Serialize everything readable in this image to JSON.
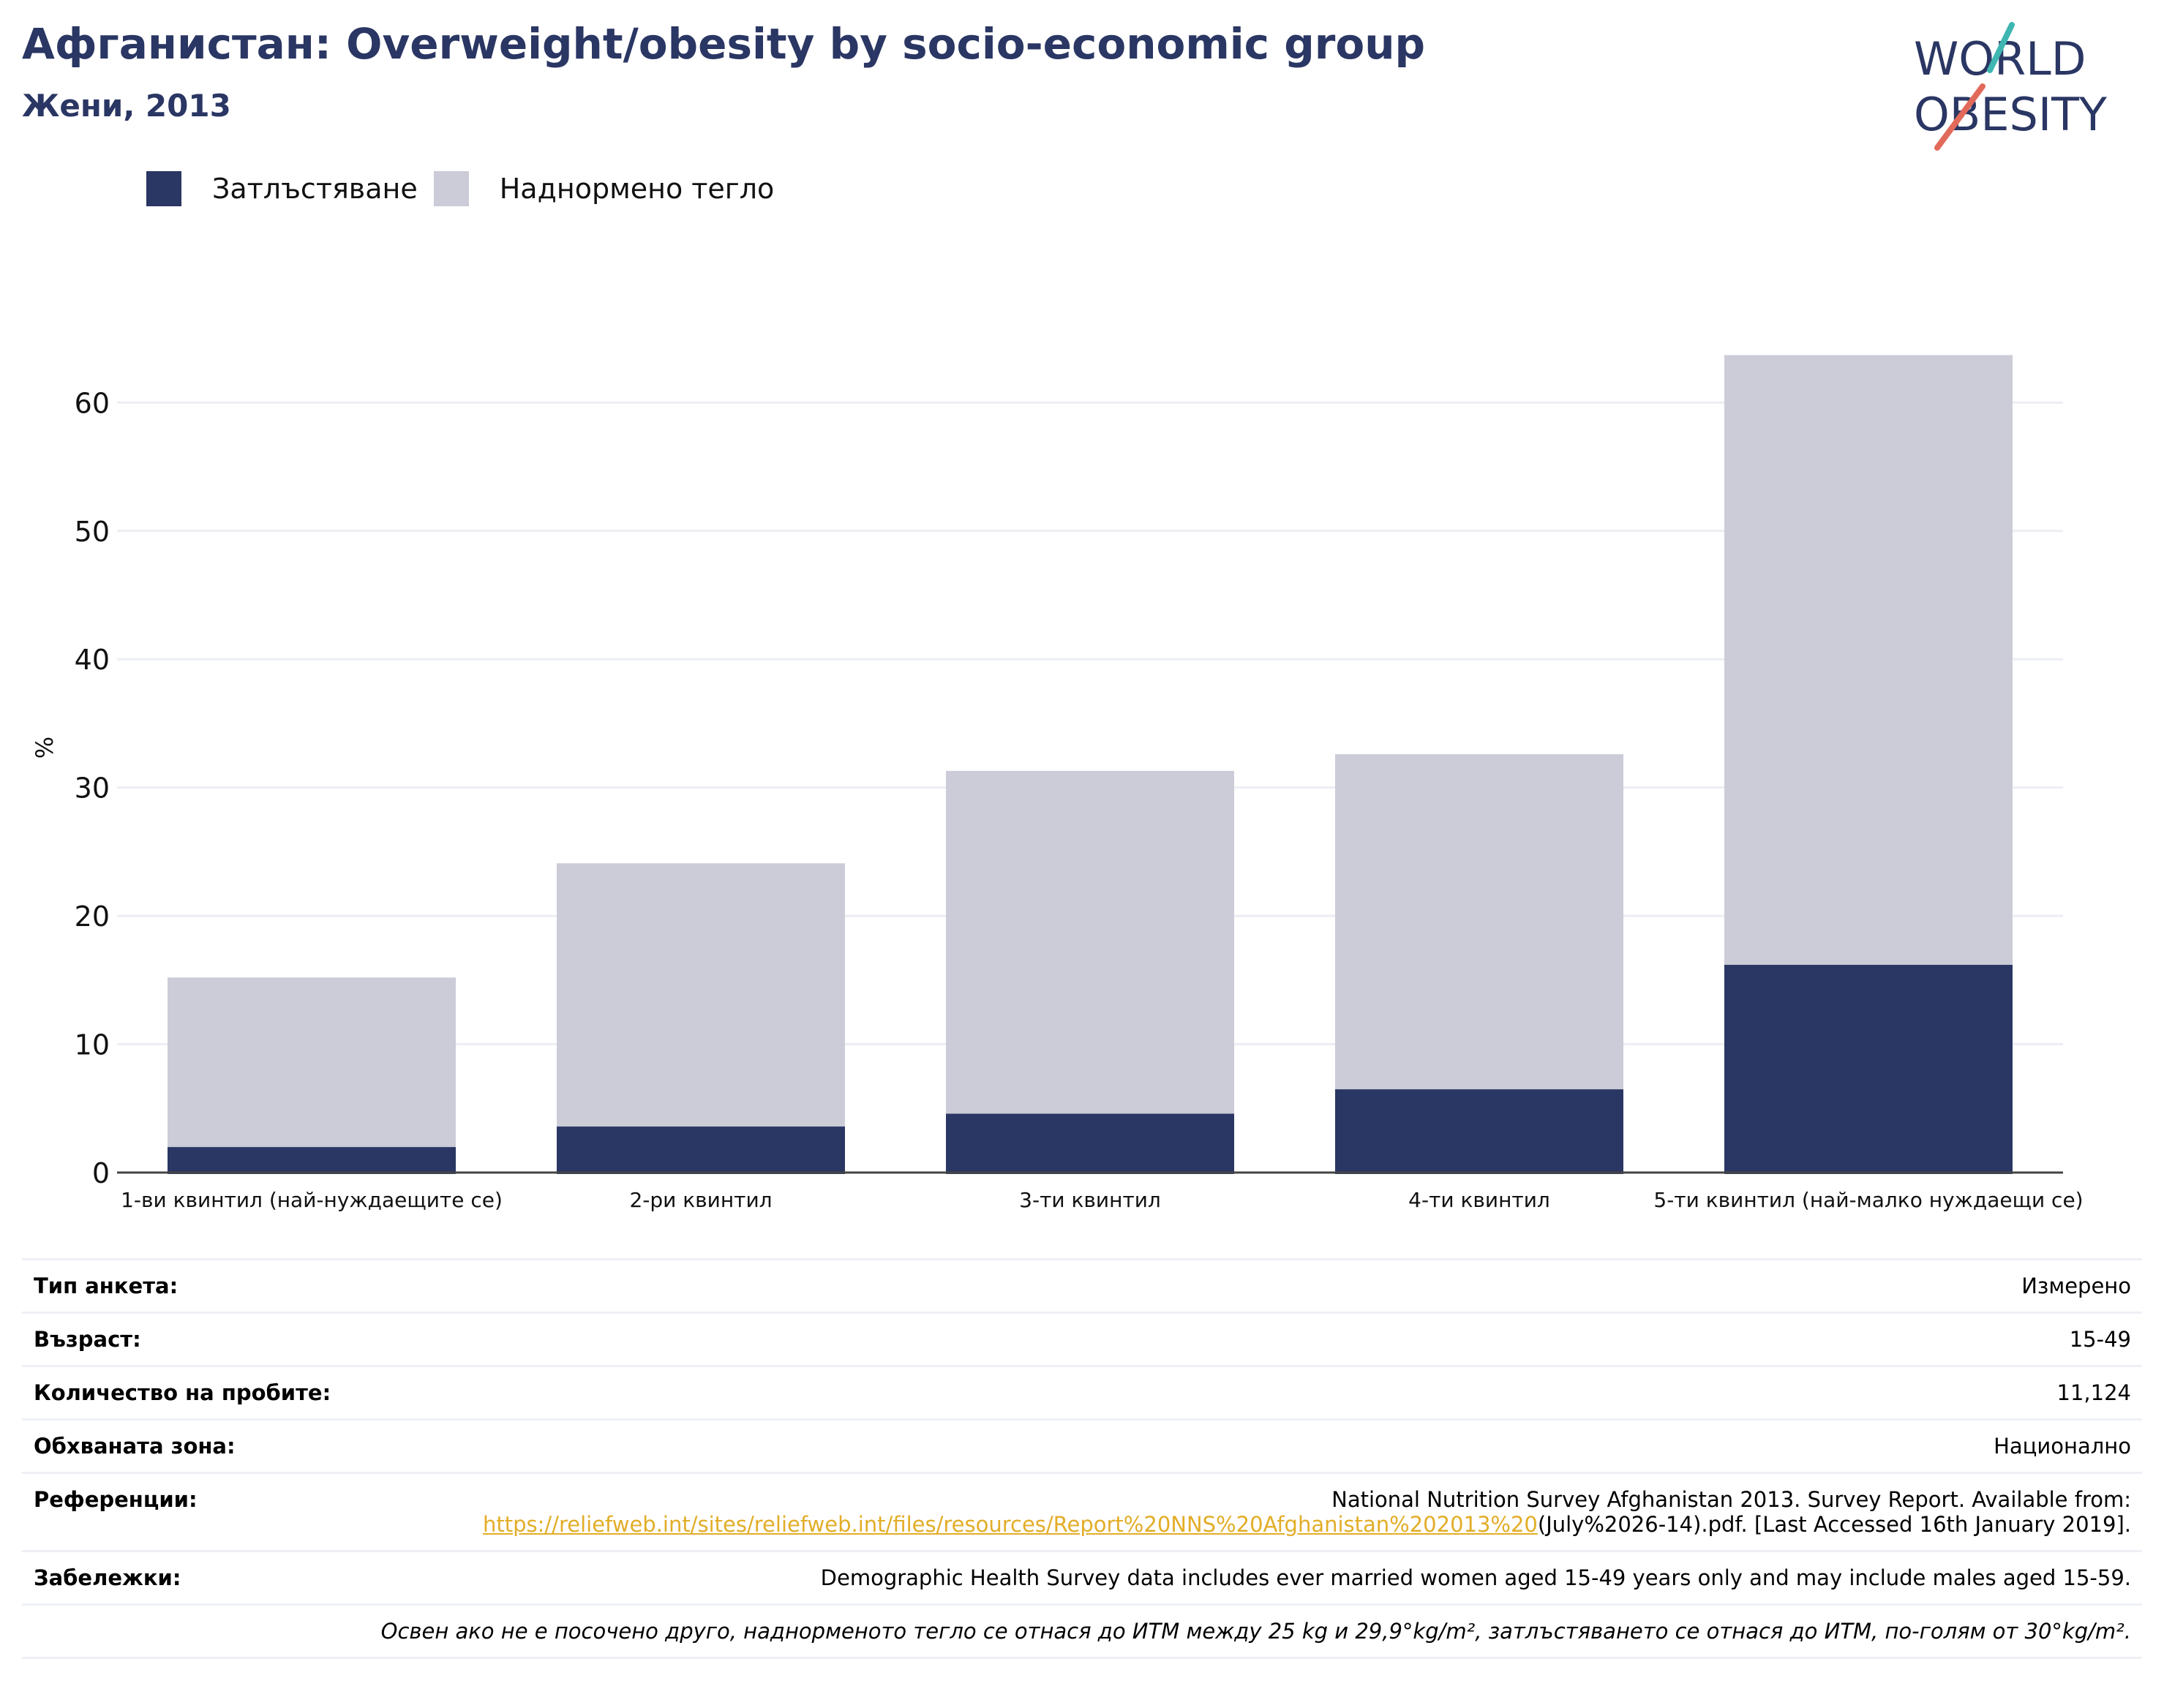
{
  "header": {
    "title": "Афганистан: Overweight/obesity by socio-economic group",
    "subtitle": "Жени, 2013"
  },
  "logo": {
    "line1": "WORLD",
    "line2": "OBESITY",
    "accent_teal": "#3fb6b2",
    "accent_coral": "#e26a5a",
    "text_color": "#2a3663"
  },
  "legend": {
    "items": [
      {
        "label": "Затлъстяване",
        "color": "#2a3663"
      },
      {
        "label": "Наднормено тегло",
        "color": "#cbccd7"
      }
    ]
  },
  "chart_data": {
    "type": "bar",
    "stacked": true,
    "categories": [
      "1-ви квинтил (най-нуждаещите се)",
      "2-ри квинтил",
      "3-ти квинтил",
      "4-ти квинтил",
      "5-ти квинтил (най-малко нуждаещи се)"
    ],
    "series": [
      {
        "name": "Затлъстяване",
        "color": "#2a3663",
        "values": [
          2.1,
          3.7,
          4.7,
          6.6,
          16.3
        ]
      },
      {
        "name": "Наднормено тегло",
        "color": "#cbccd7",
        "values": [
          13.1,
          20.4,
          26.6,
          26.0,
          47.4
        ]
      }
    ],
    "ylabel": "%",
    "ylim": [
      0,
      68
    ],
    "yticks": [
      0,
      10,
      20,
      30,
      40,
      50,
      60
    ],
    "grid": true,
    "legend_position": "top-left"
  },
  "meta": {
    "rows": [
      {
        "label": "Тип анкета:",
        "value": "Измерено"
      },
      {
        "label": "Възраст:",
        "value": "15-49"
      },
      {
        "label": "Количество на пробите:",
        "value": "11,124"
      },
      {
        "label": "Обхваната зона:",
        "value": "Национално"
      }
    ],
    "references": {
      "label": "Референции:",
      "text_before": "National Nutrition Survey Afghanistan 2013. Survey Report. Available from:",
      "link": "https://reliefweb.int/sites/reliefweb.int/files/resources/Report%20NNS%20Afghanistan%202013%20",
      "text_after": "(July%2026-14).pdf. [Last Accessed 16th January 2019]."
    },
    "notes": {
      "label": "Забележки:",
      "value": "Demographic Health Survey data includes ever married women aged 15-49 years only and may include males aged 15-59."
    },
    "footnote": "Освен ако не е посочено друго, наднорменото тегло се отнася до ИТМ между 25 kg и 29,9°kg/m², затлъстяването се отнася до ИТМ, по-голям от 30°kg/m²."
  }
}
